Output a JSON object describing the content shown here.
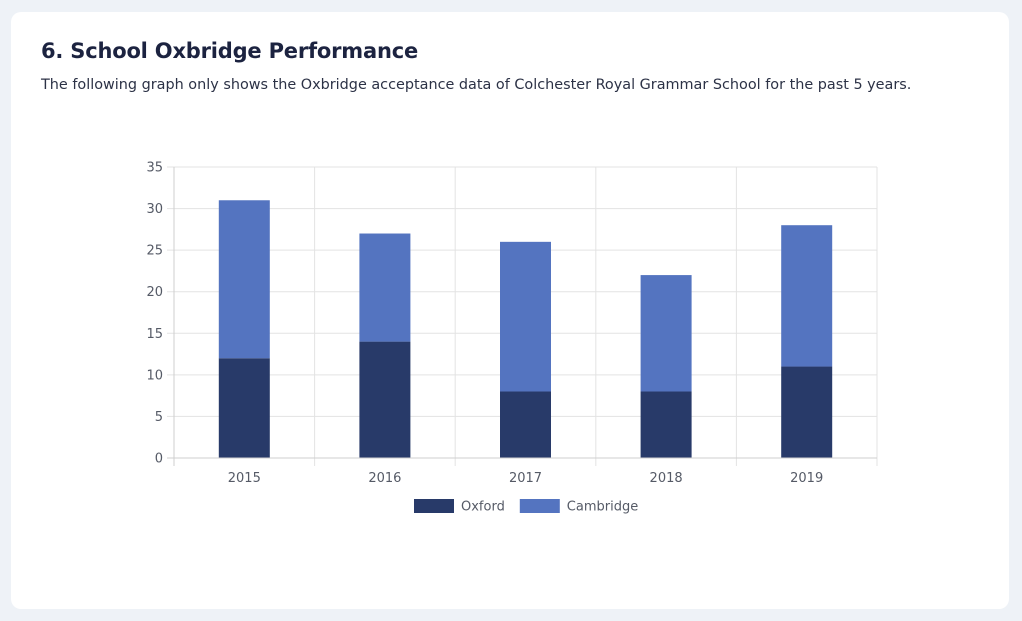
{
  "section": {
    "title": "6. School Oxbridge Performance",
    "description": "The following graph only shows the Oxbridge acceptance data of Colchester Royal Grammar School for the past 5 years."
  },
  "chart_data": {
    "type": "bar",
    "stacked": true,
    "categories": [
      "2015",
      "2016",
      "2017",
      "2018",
      "2019"
    ],
    "series": [
      {
        "name": "Oxford",
        "values": [
          12,
          14,
          8,
          8,
          11
        ],
        "color": "#283a69"
      },
      {
        "name": "Cambridge",
        "values": [
          19,
          13,
          18,
          14,
          17
        ],
        "color": "#5474c0"
      }
    ],
    "ylim": [
      0,
      35
    ],
    "yticks": [
      0,
      5,
      10,
      15,
      20,
      25,
      30,
      35
    ],
    "grid": true,
    "legend_position": "bottom"
  }
}
